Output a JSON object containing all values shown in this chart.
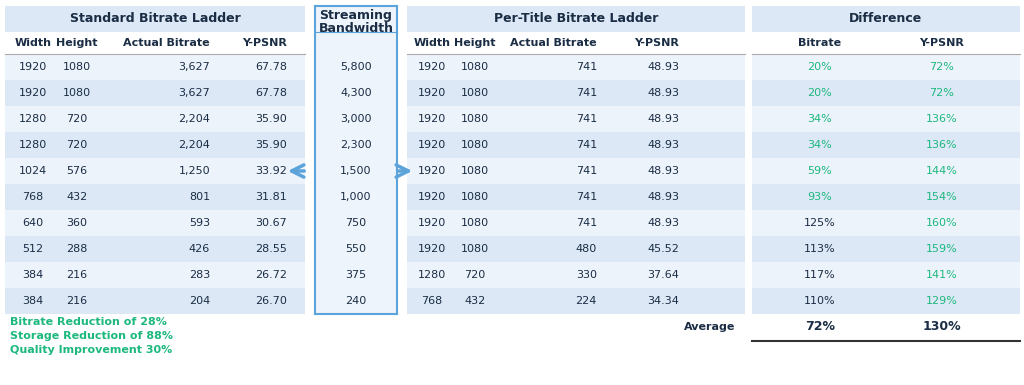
{
  "std_header": "Standard Bitrate Ladder",
  "std_cols": [
    "Width",
    "Height",
    "Actual Bitrate",
    "Y-PSNR"
  ],
  "std_rows": [
    [
      "1920",
      "1080",
      "3,627",
      "67.78"
    ],
    [
      "1920",
      "1080",
      "3,627",
      "67.78"
    ],
    [
      "1280",
      "720",
      "2,204",
      "35.90"
    ],
    [
      "1280",
      "720",
      "2,204",
      "35.90"
    ],
    [
      "1024",
      "576",
      "1,250",
      "33.92"
    ],
    [
      "768",
      "432",
      "801",
      "31.81"
    ],
    [
      "640",
      "360",
      "593",
      "30.67"
    ],
    [
      "512",
      "288",
      "426",
      "28.55"
    ],
    [
      "384",
      "216",
      "283",
      "26.72"
    ],
    [
      "384",
      "216",
      "204",
      "26.70"
    ]
  ],
  "bw_header_line1": "Streaming",
  "bw_header_line2": "Bandwidth",
  "bw_values": [
    "5,800",
    "4,300",
    "3,000",
    "2,300",
    "1,500",
    "1,000",
    "750",
    "550",
    "375",
    "240"
  ],
  "ptb_header": "Per-Title Bitrate Ladder",
  "ptb_cols": [
    "Width",
    "Height",
    "Actual Bitrate",
    "Y-PSNR"
  ],
  "ptb_rows": [
    [
      "1920",
      "1080",
      "741",
      "48.93"
    ],
    [
      "1920",
      "1080",
      "741",
      "48.93"
    ],
    [
      "1920",
      "1080",
      "741",
      "48.93"
    ],
    [
      "1920",
      "1080",
      "741",
      "48.93"
    ],
    [
      "1920",
      "1080",
      "741",
      "48.93"
    ],
    [
      "1920",
      "1080",
      "741",
      "48.93"
    ],
    [
      "1920",
      "1080",
      "741",
      "48.93"
    ],
    [
      "1920",
      "1080",
      "480",
      "45.52"
    ],
    [
      "1280",
      "720",
      "330",
      "37.64"
    ],
    [
      "768",
      "432",
      "224",
      "34.34"
    ]
  ],
  "diff_header": "Difference",
  "diff_cols": [
    "Bitrate",
    "Y-PSNR"
  ],
  "diff_rows": [
    [
      "20%",
      "72%",
      true,
      true
    ],
    [
      "20%",
      "72%",
      true,
      true
    ],
    [
      "34%",
      "136%",
      true,
      true
    ],
    [
      "34%",
      "136%",
      true,
      true
    ],
    [
      "59%",
      "144%",
      true,
      true
    ],
    [
      "93%",
      "154%",
      true,
      true
    ],
    [
      "125%",
      "160%",
      false,
      true
    ],
    [
      "113%",
      "159%",
      false,
      true
    ],
    [
      "117%",
      "141%",
      false,
      true
    ],
    [
      "110%",
      "129%",
      false,
      true
    ]
  ],
  "avg_bitrate": "72%",
  "avg_psnr": "130%",
  "footer_lines": [
    "Bitrate Reduction of 28%",
    "Storage Reduction of 88%",
    "Quality Improvement 30%"
  ],
  "bg_color": "#ffffff",
  "row_alt_color": "#dce8f5",
  "row_white": "#edf3fb",
  "header_bg": "#dce8f5",
  "bw_box_fill": "#eef4fb",
  "bw_box_border": "#5ba3d9",
  "text_dark": "#1a2d45",
  "text_green": "#1db87e",
  "text_teal": "#1db87e",
  "arrow_color": "#5ba3d9",
  "diff_psnr_color": "#1db87e",
  "avg_line_color": "#333333"
}
